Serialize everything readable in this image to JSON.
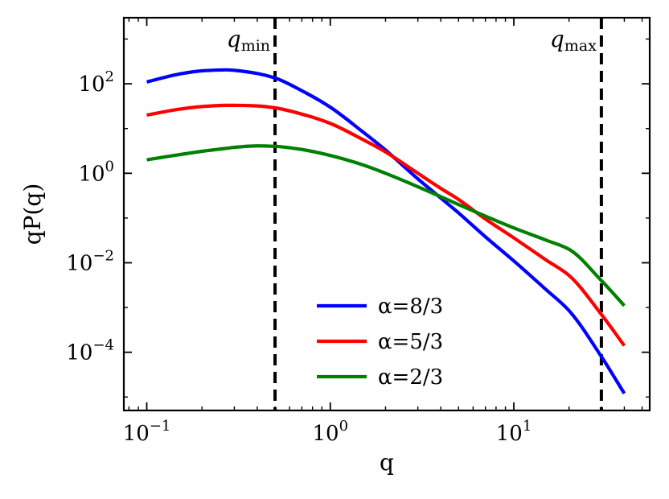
{
  "chart_data": {
    "type": "line",
    "xlabel": "q",
    "ylabel": "qP(q)",
    "xscale": "log",
    "yscale": "log",
    "xlim": [
      0.075,
      55
    ],
    "ylim": [
      5e-06,
      3000
    ],
    "grid": false,
    "legend_position": "lower-center",
    "x_ticks": [
      {
        "value": 0.1,
        "base": "10",
        "exp": "−1"
      },
      {
        "value": 1,
        "base": "10",
        "exp": "0"
      },
      {
        "value": 10,
        "base": "10",
        "exp": "1"
      }
    ],
    "y_ticks": [
      {
        "value": 0.0001,
        "base": "10",
        "exp": "−4"
      },
      {
        "value": 0.01,
        "base": "10",
        "exp": "−2"
      },
      {
        "value": 1,
        "base": "10",
        "exp": "0"
      },
      {
        "value": 100,
        "base": "10",
        "exp": "2"
      }
    ],
    "vlines": [
      {
        "x": 0.5,
        "label_base": "q",
        "label_sub": "min",
        "color": "#000000"
      },
      {
        "x": 30,
        "label_base": "q",
        "label_sub": "max",
        "color": "#000000"
      }
    ],
    "x": [
      0.1,
      0.15,
      0.2,
      0.27,
      0.3,
      0.4,
      0.5,
      0.7,
      1,
      1.5,
      2,
      3,
      4,
      5,
      7,
      10,
      15,
      20,
      30,
      40
    ],
    "series": [
      {
        "name": "α=8/3",
        "color": "#0000ff",
        "values": [
          110,
          165,
          195,
          205,
          200,
          170,
          135,
          70,
          30,
          8.5,
          3.3,
          0.75,
          0.28,
          0.13,
          0.038,
          0.011,
          0.0025,
          0.00085,
          8e-05,
          1.2e-05
        ]
      },
      {
        "name": "α=5/3",
        "color": "#ff0000",
        "values": [
          20,
          27,
          31,
          33,
          33,
          32,
          29,
          21,
          13,
          5.7,
          3,
          1,
          0.46,
          0.26,
          0.095,
          0.036,
          0.0115,
          0.0052,
          0.0007,
          0.00014
        ]
      },
      {
        "name": "α=2/3",
        "color": "#008000",
        "values": [
          2,
          2.6,
          3.1,
          3.6,
          3.8,
          4.1,
          4,
          3.4,
          2.5,
          1.55,
          1,
          0.5,
          0.3,
          0.2,
          0.11,
          0.06,
          0.032,
          0.02,
          0.004,
          0.0011
        ]
      }
    ]
  }
}
